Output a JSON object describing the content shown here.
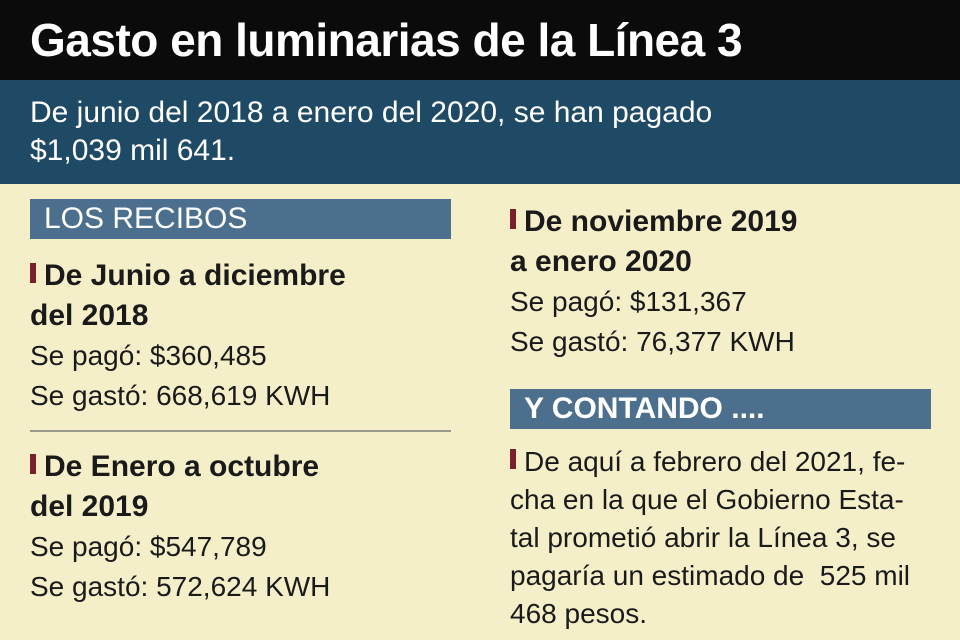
{
  "title": "Gasto en luminarias de la Línea 3",
  "subtitle": {
    "line1": "De junio del 2018 a enero del 2020, se han pagado",
    "line2": "$1,039 mil 641."
  },
  "sections": {
    "recibos": {
      "header": "LOS RECIBOS",
      "entries": [
        {
          "head_line1": "De Junio a diciembre",
          "head_line2": "del 2018",
          "paid": "Se pagó: $360,485",
          "spent": "Se gastó: 668,619 KWH"
        },
        {
          "head_line1": "De Enero a octubre",
          "head_line2": "del 2019",
          "paid": "Se pagó: $547,789",
          "spent": "Se gastó: 572,624 KWH"
        },
        {
          "head_line1": "De noviembre 2019",
          "head_line2": "a enero 2020",
          "paid": "Se pagó: $131,367",
          "spent": "Se gastó: 76,377 KWH"
        }
      ]
    },
    "contando": {
      "header": "Y CONTANDO ....",
      "lines": [
        "De aquí a febrero del 2021, fe-",
        "cha en la que el Gobierno Esta-",
        "tal prometió abrir la Línea 3, se",
        "pagaría un estimado de  525 mil",
        "468 pesos."
      ]
    }
  },
  "colors": {
    "background": "#f4efc9",
    "title_bar": "#0b0b0b",
    "subtitle_bar": "#1f4a66",
    "section_header": "#4b6f8c",
    "marker": "#7a1f2b"
  }
}
